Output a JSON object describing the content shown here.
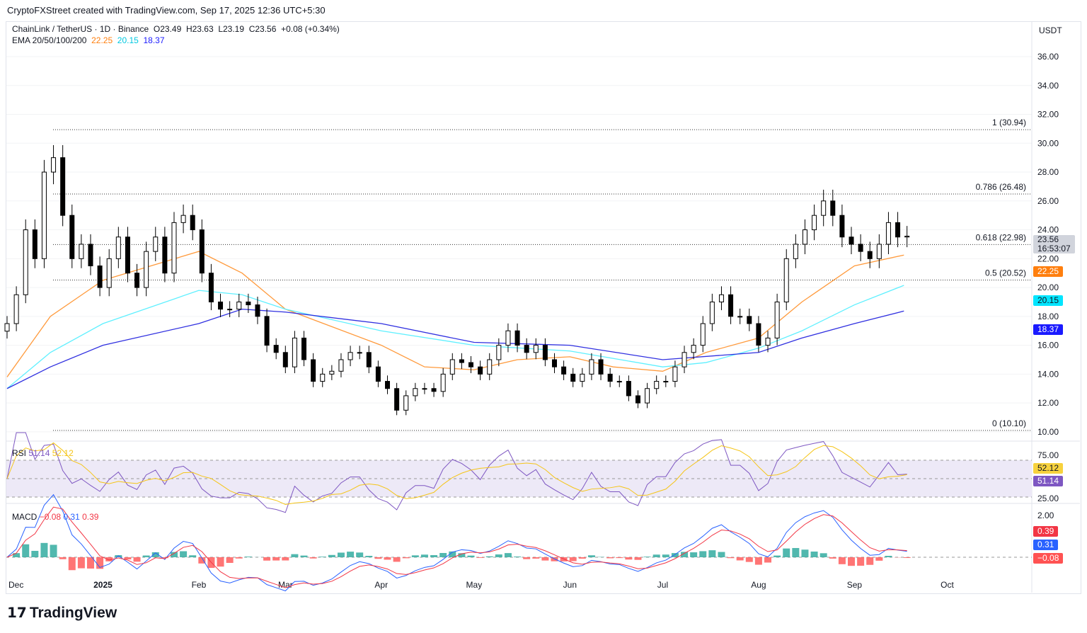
{
  "credit": "CryptoFXStreet created with TradingView.com, Sep 17, 2025 12:36 UTC+5:30",
  "symbol": {
    "name": "ChainLink / TetherUS · 1D · Binance",
    "open": "O23.49",
    "high": "H23.63",
    "low": "L23.19",
    "close": "C23.56",
    "change": "+0.08 (+0.34%)"
  },
  "ema": {
    "label": "EMA 20/50/100/200",
    "v50": "22.25",
    "v100": "20.15",
    "v200": "18.37",
    "colors": {
      "ema50": "#ff7f0e",
      "ema100": "#00e5ff",
      "ema200": "#1a1aff"
    }
  },
  "currency": "USDT",
  "price_tag": {
    "price": "23.56",
    "countdown": "16:53:07"
  },
  "rsi": {
    "label": "RSI",
    "value": "51.14",
    "ma": "52.12",
    "ticks": [
      "75.00",
      "25.00"
    ]
  },
  "macd": {
    "label": "MACD",
    "hist": "−0.08",
    "macd": "0.31",
    "signal": "0.39",
    "ticks": [
      "2.00"
    ]
  },
  "logo": "TradingView",
  "chart_data": {
    "type": "candlestick",
    "ylim": [
      10,
      36
    ],
    "y_ticks": [
      "36.00",
      "34.00",
      "32.00",
      "30.00",
      "28.00",
      "26.00",
      "24.00",
      "22.00",
      "20.00",
      "18.00",
      "16.00",
      "14.00",
      "12.00",
      "10.00"
    ],
    "x_ticks": [
      "Dec",
      "2025",
      "Feb",
      "Mar",
      "Apr",
      "May",
      "Jun",
      "Jul",
      "Aug",
      "Sep",
      "Oct"
    ],
    "fib_levels": [
      {
        "label": "1 (30.94)",
        "value": 30.94
      },
      {
        "label": "0.786 (26.48)",
        "value": 26.48
      },
      {
        "label": "0.618 (22.98)",
        "value": 22.98
      },
      {
        "label": "0.5 (20.52)",
        "value": 20.52
      },
      {
        "label": "0 (10.10)",
        "value": 10.1
      }
    ],
    "start_date": "2024-12-01",
    "step_days": 3,
    "closes": [
      17.5,
      19.5,
      24,
      22,
      28,
      29,
      25,
      22,
      23,
      21.5,
      20,
      22,
      23.5,
      21,
      20,
      22.5,
      23.5,
      21,
      24.5,
      25,
      24,
      21,
      19,
      18.5,
      18.5,
      19,
      18.8,
      18,
      16,
      15.5,
      14.5,
      16.5,
      15,
      13.5,
      14,
      14.2,
      15,
      15.5,
      15.5,
      14.5,
      13.5,
      13,
      11.5,
      12.5,
      13,
      13,
      12.8,
      14,
      15,
      14.8,
      14.5,
      14,
      15,
      16,
      17,
      16,
      15.5,
      16,
      15,
      14.5,
      14,
      13.5,
      14,
      15,
      14,
      13.5,
      13.5,
      12.5,
      12,
      13,
      13.5,
      13.5,
      14.5,
      15.5,
      16,
      17.5,
      19,
      19.5,
      18,
      18,
      17.5,
      16,
      16.5,
      19,
      22,
      23,
      24,
      25,
      26,
      25,
      23.5,
      23,
      22.5,
      22,
      23,
      24.5,
      23.5,
      23.56
    ],
    "ema50": [
      [
        "2024-12-01",
        13.8
      ],
      [
        "2024-12-15",
        18
      ],
      [
        "2025-01-01",
        20.5
      ],
      [
        "2025-02-01",
        22.5
      ],
      [
        "2025-02-15",
        21
      ],
      [
        "2025-03-01",
        18.5
      ],
      [
        "2025-04-01",
        16
      ],
      [
        "2025-04-15",
        14.5
      ],
      [
        "2025-05-01",
        14.3
      ],
      [
        "2025-05-15",
        15
      ],
      [
        "2025-06-01",
        15.2
      ],
      [
        "2025-06-15",
        14.5
      ],
      [
        "2025-07-01",
        14.2
      ],
      [
        "2025-07-15",
        15.5
      ],
      [
        "2025-08-01",
        16.5
      ],
      [
        "2025-08-15",
        19
      ],
      [
        "2025-09-01",
        21.5
      ],
      [
        "2025-09-17",
        22.25
      ]
    ],
    "ema100": [
      [
        "2024-12-01",
        13
      ],
      [
        "2024-12-15",
        15.5
      ],
      [
        "2025-01-01",
        17.5
      ],
      [
        "2025-02-01",
        19.8
      ],
      [
        "2025-02-15",
        19.5
      ],
      [
        "2025-03-01",
        18.5
      ],
      [
        "2025-04-01",
        17
      ],
      [
        "2025-05-01",
        16
      ],
      [
        "2025-06-01",
        15.6
      ],
      [
        "2025-07-01",
        14.5
      ],
      [
        "2025-07-15",
        14.8
      ],
      [
        "2025-08-01",
        15.8
      ],
      [
        "2025-08-15",
        17
      ],
      [
        "2025-09-01",
        18.8
      ],
      [
        "2025-09-17",
        20.15
      ]
    ],
    "ema200": [
      [
        "2024-12-01",
        13
      ],
      [
        "2024-12-15",
        14.5
      ],
      [
        "2025-01-01",
        16
      ],
      [
        "2025-02-01",
        17.5
      ],
      [
        "2025-02-15",
        18.5
      ],
      [
        "2025-03-01",
        18.3
      ],
      [
        "2025-04-01",
        17.5
      ],
      [
        "2025-05-01",
        16.2
      ],
      [
        "2025-06-01",
        16
      ],
      [
        "2025-07-01",
        15
      ],
      [
        "2025-08-01",
        15.5
      ],
      [
        "2025-08-15",
        16.5
      ],
      [
        "2025-09-01",
        17.5
      ],
      [
        "2025-09-17",
        18.37
      ]
    ]
  }
}
